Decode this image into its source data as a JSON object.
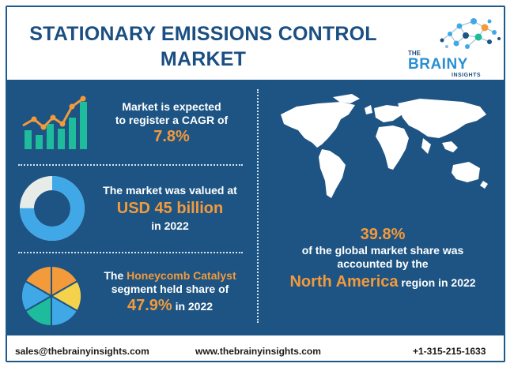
{
  "header": {
    "title_line1": "STATIONARY EMISSIONS CONTROL",
    "title_line2": "MARKET",
    "logo": {
      "the": "THE",
      "brainy": "BRAINY",
      "insights": "INSIGHTS"
    }
  },
  "cagr": {
    "line1": "Market is expected",
    "line2": "to register a CAGR of",
    "value": "7.8%"
  },
  "valuation": {
    "line1": "The market was valued at",
    "value": "USD 45 billion",
    "year": "in 2022"
  },
  "segment": {
    "prefix": "The",
    "name": "Honeycomb Catalyst",
    "line2": "segment held share of",
    "value": "47.9%",
    "suffix": "in 2022"
  },
  "region": {
    "value": "39.8%",
    "line1": "of the global market share was",
    "line2": "accounted by the",
    "name": "North America",
    "suffix": "region in 2022"
  },
  "footer": {
    "email": "sales@thebrainyinsights.com",
    "website": "www.thebrainyinsights.com",
    "phone": "+1-315-215-1633"
  },
  "colors": {
    "panel": "#1d5483",
    "accent": "#f39a3b",
    "teal": "#1ebc9c",
    "blue": "#41a8e8",
    "yellow": "#f5d24c"
  },
  "icons": [
    "growth-chart-icon",
    "donut-chart-icon",
    "pie-chart-icon",
    "world-map-icon"
  ],
  "donut_fraction": 0.75
}
